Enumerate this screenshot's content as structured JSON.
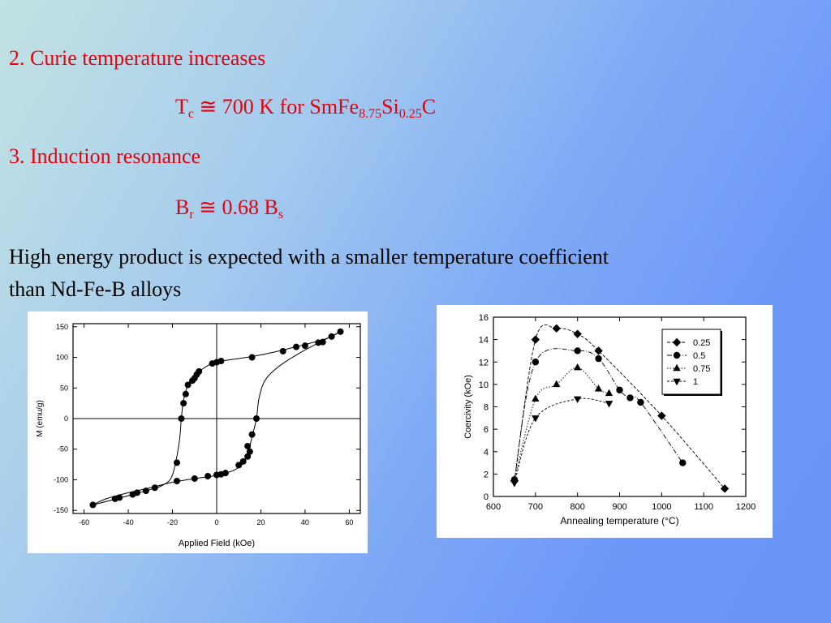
{
  "slide": {
    "item2": "2. Curie temperature increases",
    "tc": {
      "T": "T",
      "sub_c": "c",
      "rest": " ≅ 700 K for SmFe",
      "sub1": "8.75",
      "si": "Si",
      "sub2": "0.25",
      "c": "C"
    },
    "item3": "3. Induction resonance",
    "br": {
      "B": "B",
      "sub_r": "r",
      "rest": " ≅ 0.68 B",
      "sub_s": "s"
    },
    "para1": "High energy product is expected with a smaller temperature coefficient",
    "para2": "than Nd-Fe-B alloys"
  },
  "colors": {
    "text_red": "#e8000c",
    "text_black": "#000000"
  },
  "chart_data": [
    {
      "type": "scatter",
      "xlabel": "Applied Field (kOe)",
      "ylabel": "M (emu/g)",
      "xlim": [
        -65,
        65
      ],
      "ylim": [
        -155,
        155
      ],
      "xticks": [
        -60,
        -40,
        -20,
        0,
        20,
        40,
        60
      ],
      "yticks": [
        -150,
        -100,
        -50,
        0,
        50,
        100,
        150
      ],
      "xtick_labels": [
        "-60",
        "-40",
        "-20",
        "0",
        "20",
        "40",
        "60"
      ],
      "ytick_labels": [
        "-150",
        "-100",
        "-50",
        "0",
        "50",
        "100",
        "150"
      ],
      "grid": false,
      "zero_lines": true,
      "series": [
        {
          "points": [
            [
              -56,
              -141
            ],
            [
              -46,
              -131
            ],
            [
              -44,
              -129
            ],
            [
              -38,
              -124
            ],
            [
              -36,
              -121
            ],
            [
              -32,
              -118
            ],
            [
              -28,
              -113
            ],
            [
              -18,
              -102
            ],
            [
              -10,
              -98
            ],
            [
              -4,
              -94
            ],
            [
              0,
              -92
            ],
            [
              2,
              -91
            ],
            [
              4,
              -89
            ],
            [
              10,
              -76
            ],
            [
              12,
              -70
            ],
            [
              14,
              -62
            ],
            [
              15,
              -54
            ],
            [
              14,
              -45
            ],
            [
              16,
              -26
            ],
            [
              18,
              0
            ],
            [
              -16,
              0
            ],
            [
              -18,
              -72
            ],
            [
              -15,
              25
            ],
            [
              -14,
              40
            ],
            [
              -13,
              55
            ],
            [
              -11,
              62
            ],
            [
              -10,
              66
            ],
            [
              -9,
              72
            ],
            [
              -8,
              77
            ],
            [
              -2,
              90
            ],
            [
              0,
              92
            ],
            [
              2,
              94
            ],
            [
              16,
              100
            ],
            [
              30,
              110
            ],
            [
              36,
              117
            ],
            [
              40,
              119
            ],
            [
              46,
              124
            ],
            [
              48,
              125
            ],
            [
              52,
              134
            ],
            [
              56,
              142
            ]
          ]
        }
      ],
      "curve": {
        "upper_branch": [
          [
            -56,
            -141
          ],
          [
            -40,
            -126
          ],
          [
            -30,
            -116
          ],
          [
            -24,
            -108
          ],
          [
            -20,
            -92
          ],
          [
            -17,
            -40
          ],
          [
            -16,
            0
          ],
          [
            -15,
            30
          ],
          [
            -13,
            55
          ],
          [
            -10,
            70
          ],
          [
            -6,
            82
          ],
          [
            -2,
            90
          ],
          [
            2,
            94
          ],
          [
            10,
            98
          ],
          [
            20,
            104
          ],
          [
            30,
            112
          ],
          [
            40,
            121
          ],
          [
            50,
            131
          ],
          [
            56,
            142
          ]
        ],
        "lower_branch": [
          [
            -56,
            -141
          ],
          [
            -50,
            -131
          ],
          [
            -40,
            -121
          ],
          [
            -30,
            -113
          ],
          [
            -20,
            -104
          ],
          [
            -10,
            -98
          ],
          [
            -2,
            -94
          ],
          [
            2,
            -91
          ],
          [
            8,
            -84
          ],
          [
            12,
            -73
          ],
          [
            14,
            -58
          ],
          [
            16,
            -30
          ],
          [
            18,
            0
          ],
          [
            19,
            30
          ],
          [
            21,
            56
          ],
          [
            24,
            72
          ],
          [
            30,
            90
          ],
          [
            40,
            112
          ],
          [
            56,
            142
          ]
        ]
      }
    },
    {
      "type": "line",
      "xlabel": "Annealing temperature (°C)",
      "ylabel": "Coercivity (kOe)",
      "xlim": [
        600,
        1200
      ],
      "ylim": [
        0,
        16
      ],
      "xticks": [
        600,
        700,
        800,
        900,
        1000,
        1100,
        1200
      ],
      "yticks": [
        0,
        2,
        4,
        6,
        8,
        10,
        12,
        14,
        16
      ],
      "xtick_labels": [
        "600",
        "700",
        "800",
        "900",
        "1000",
        "1100",
        "1200"
      ],
      "ytick_labels": [
        "0",
        "2",
        "4",
        "6",
        "8",
        "10",
        "12",
        "14",
        "16"
      ],
      "legend_position": "top-right",
      "grid": false,
      "series": [
        {
          "name": "0.25",
          "marker": "diamond",
          "x": [
            650,
            700,
            750,
            800,
            850,
            1000,
            1150
          ],
          "values": [
            1.4,
            14,
            15,
            14.5,
            13,
            7.2,
            0.7
          ]
        },
        {
          "name": "0.5",
          "marker": "circle",
          "x": [
            650,
            700,
            800,
            850,
            900,
            925,
            950,
            1050
          ],
          "values": [
            1.5,
            12,
            13,
            12.3,
            9.5,
            8.8,
            8.4,
            3.0
          ]
        },
        {
          "name": "0.75",
          "marker": "triangle-up",
          "x": [
            650,
            700,
            750,
            800,
            850,
            875
          ],
          "values": [
            1.5,
            8.7,
            10,
            11.5,
            9.6,
            9.2
          ]
        },
        {
          "name": "1",
          "marker": "triangle-down",
          "x": [
            650,
            700,
            800,
            875
          ],
          "values": [
            1.2,
            7,
            8.7,
            8.3
          ]
        }
      ]
    }
  ]
}
